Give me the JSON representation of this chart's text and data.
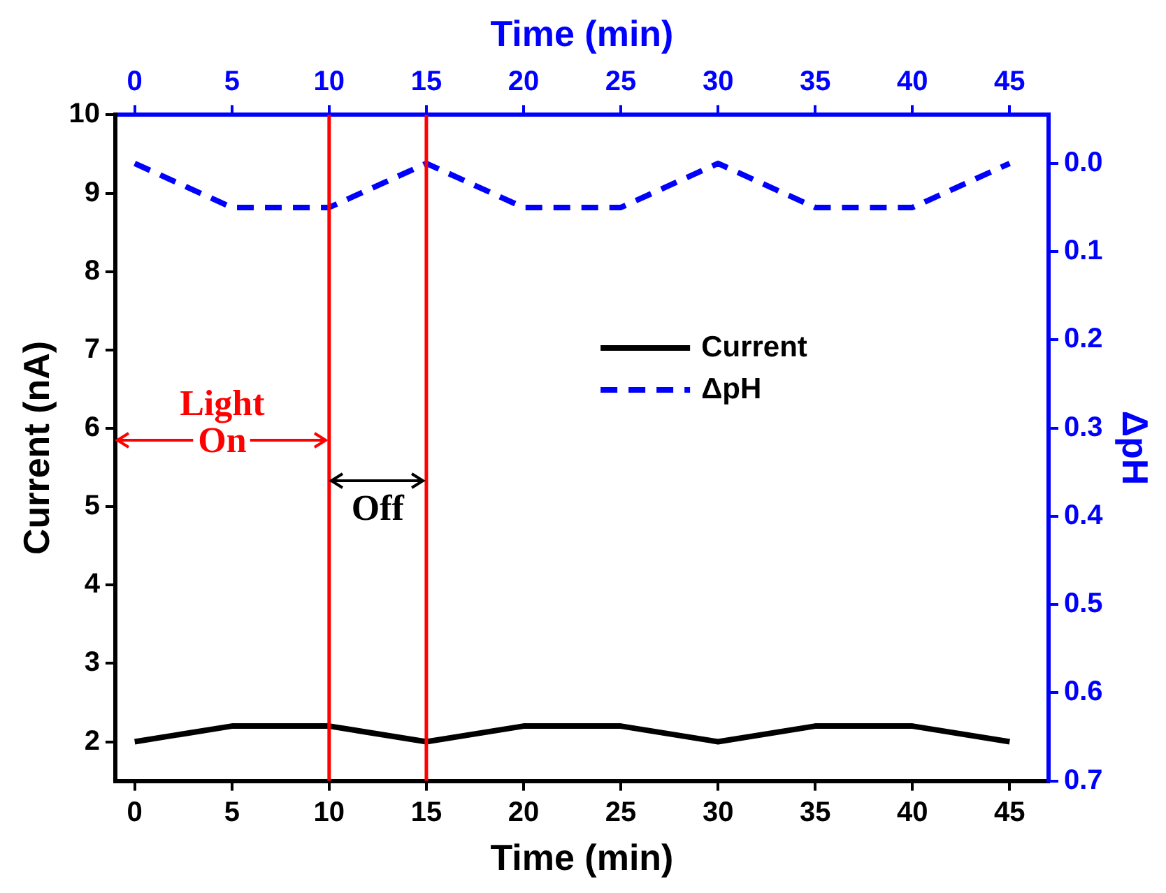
{
  "chart_data": {
    "type": "line",
    "xlabel": "Time (min)",
    "ylabel": "Current (nA)",
    "y2label": "ΔpH",
    "x2label": "Time (min)",
    "x": [
      0,
      5,
      10,
      15,
      20,
      25,
      30,
      35,
      40,
      45
    ],
    "xlim": [
      -1,
      47
    ],
    "xticks": [
      0,
      5,
      10,
      15,
      20,
      25,
      30,
      35,
      40,
      45
    ],
    "x2lim": [
      -1,
      47
    ],
    "x2ticks": [
      0,
      5,
      10,
      15,
      20,
      25,
      30,
      35,
      40,
      45
    ],
    "ylim": [
      1.5,
      10
    ],
    "yticks": [
      2,
      3,
      4,
      5,
      6,
      7,
      8,
      9,
      10
    ],
    "y2lim": [
      0.7,
      -0.055
    ],
    "y2ticks": [
      {
        "value": 0,
        "label": "0.0"
      },
      0.1,
      0.2,
      0.3,
      0.4,
      0.5,
      0.6,
      0.7
    ],
    "series": [
      {
        "name": "Current",
        "color": "#000000",
        "values": [
          2.0,
          2.2,
          2.2,
          2.0,
          2.2,
          2.2,
          2.0,
          2.2,
          2.2,
          2.0
        ],
        "line_style": "solid"
      },
      {
        "name": "ΔpH",
        "color": "#0000ff",
        "axis": "y2",
        "values": [
          0,
          0.05,
          0.05,
          0,
          0.05,
          0.05,
          0,
          0.05,
          0.05,
          0
        ],
        "line_style": "dashed"
      }
    ],
    "ref_lines": [
      {
        "axis": "x",
        "value": 10,
        "color": "#ff0000"
      },
      {
        "axis": "x",
        "value": 15,
        "color": "#ff0000"
      }
    ],
    "annotations": [
      {
        "text": "Light On",
        "x": 10,
        "y": 5.85
      },
      "Off"
    ],
    "legend": "right",
    "marker": "none",
    "grid": false
  }
}
